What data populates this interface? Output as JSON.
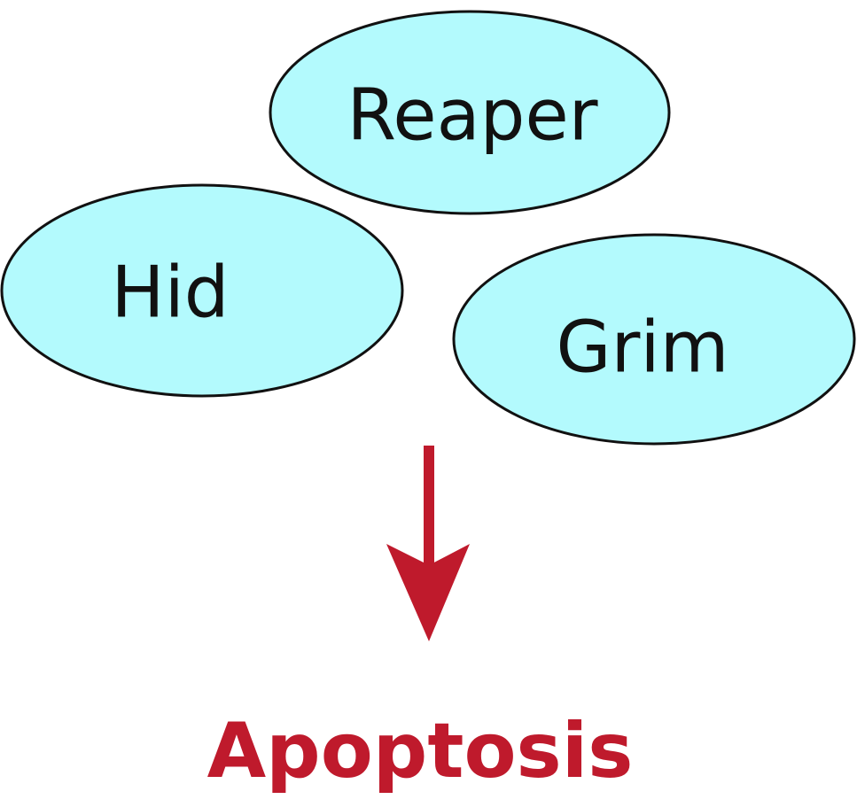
{
  "nodes": [
    {
      "label": "Reaper",
      "fill": "#b3fafd"
    },
    {
      "label": "Hid",
      "fill": "#b3fafd"
    },
    {
      "label": "Grim",
      "fill": "#b3fafd"
    }
  ],
  "result": {
    "label": "Apoptosis",
    "color": "#bf1a2c"
  },
  "arrow": {
    "color": "#bf1a2c"
  }
}
